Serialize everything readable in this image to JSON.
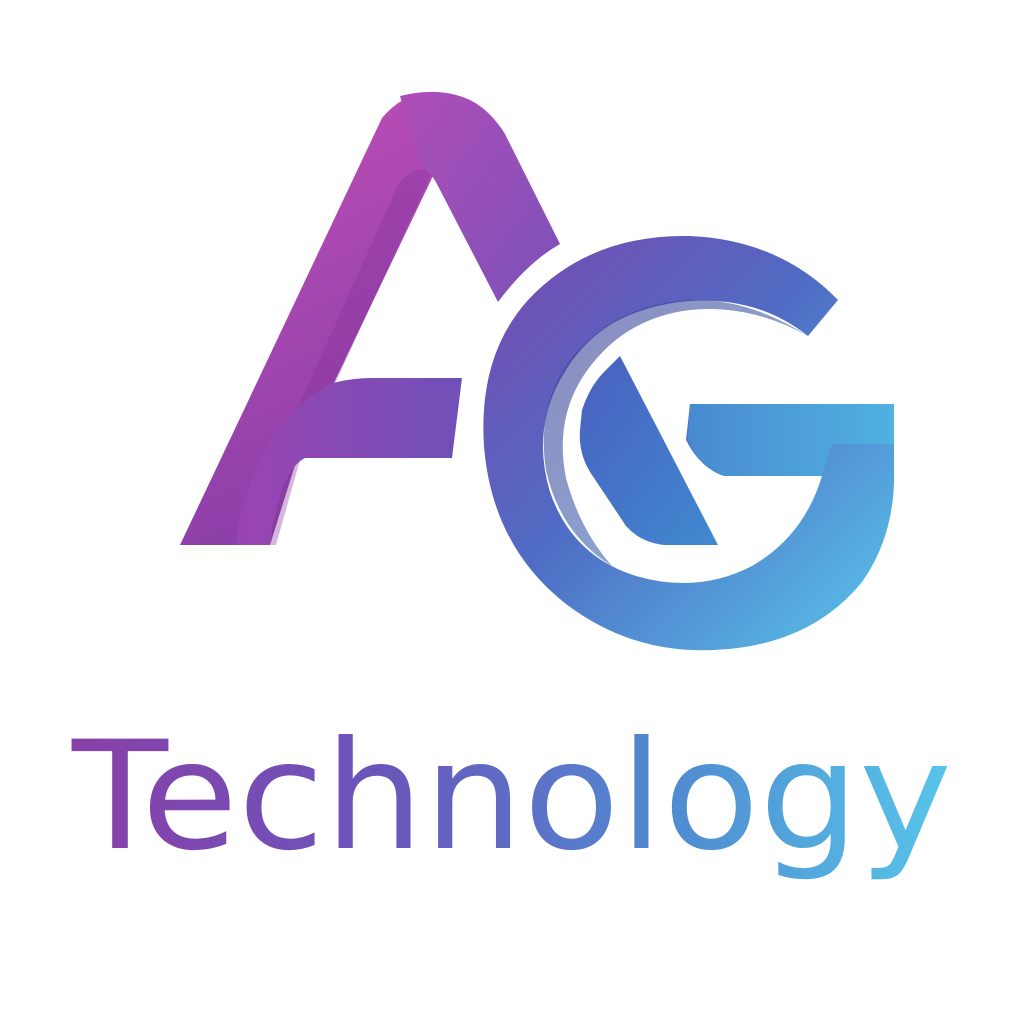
{
  "logo": {
    "monogram": "AG",
    "wordmark": "Technology",
    "icon": "ag-monogram-icon",
    "colors": {
      "magenta": "#c24fb8",
      "purple": "#8a3fa8",
      "violet": "#7050b8",
      "indigo": "#4a3f98",
      "blue": "#4a84cc",
      "cyan": "#58c6ea",
      "background": "#ffffff"
    }
  }
}
